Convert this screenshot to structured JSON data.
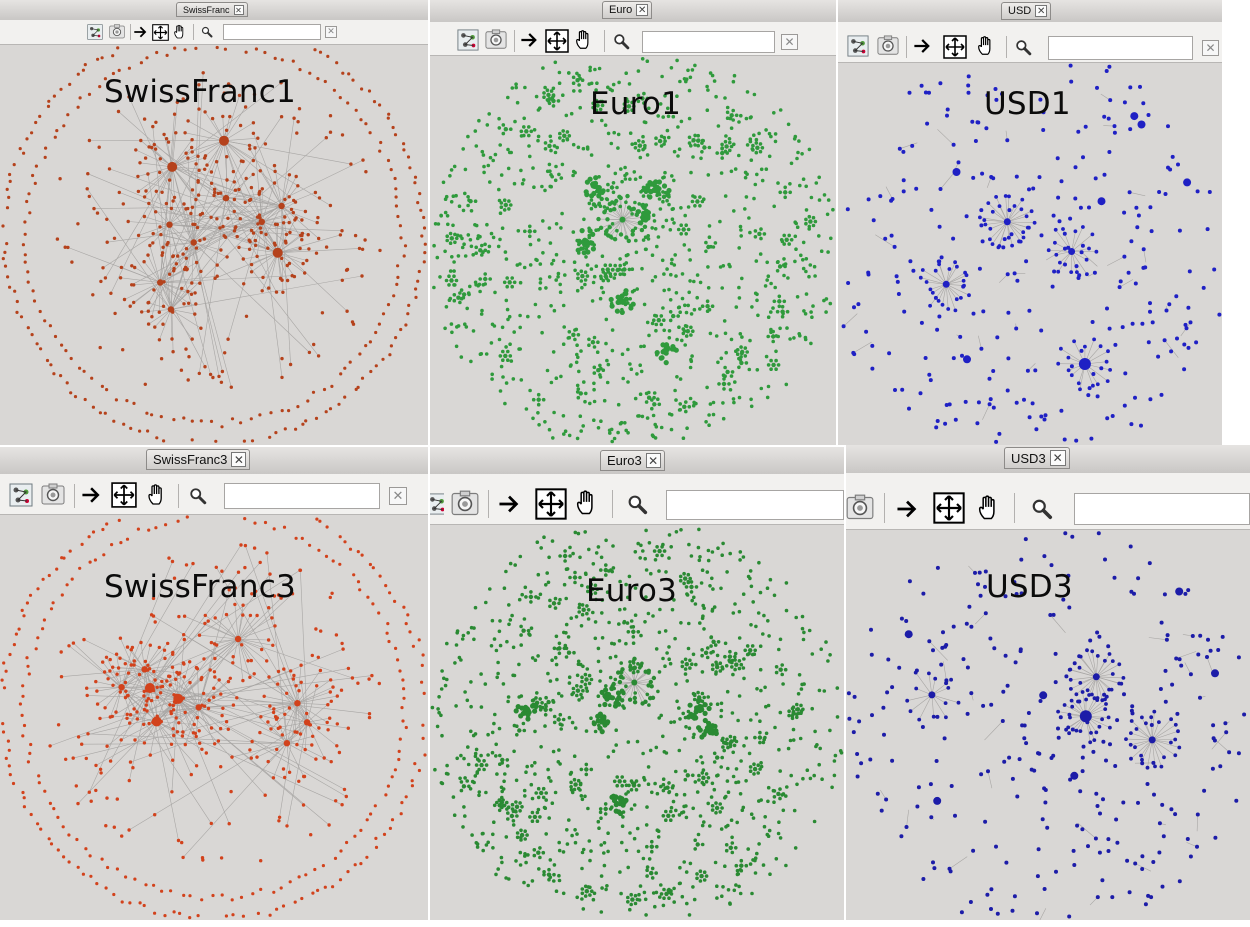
{
  "panels": [
    {
      "id": "sf1",
      "tab_label": "SwissFranc",
      "title": "SwissFranc1",
      "node_color": "#b5421c",
      "layout": "ringed",
      "seed": 11
    },
    {
      "id": "eur1",
      "tab_label": "Euro",
      "title": "Euro1",
      "node_color": "#2f9a3c",
      "layout": "dense",
      "seed": 23
    },
    {
      "id": "usd1",
      "tab_label": "USD",
      "title": "USD1",
      "node_color": "#1f20c4",
      "layout": "sparse",
      "seed": 37
    },
    {
      "id": "sf3",
      "tab_label": "SwissFranc3",
      "title": "SwissFranc3",
      "node_color": "#d2421c",
      "layout": "ringed",
      "seed": 41
    },
    {
      "id": "eur3",
      "tab_label": "Euro3",
      "title": "Euro3",
      "node_color": "#2a8a33",
      "layout": "dense",
      "seed": 53
    },
    {
      "id": "usd3",
      "tab_label": "USD3",
      "title": "USD3",
      "node_color": "#1c1ca8",
      "layout": "sparse",
      "seed": 67
    }
  ],
  "toolbar_icons": [
    "layout-icon",
    "camera-icon",
    "arrow-icon",
    "move-icon",
    "hand-icon",
    "magnifier-icon"
  ],
  "clear_glyph": "✕",
  "close_glyph": "✕"
}
